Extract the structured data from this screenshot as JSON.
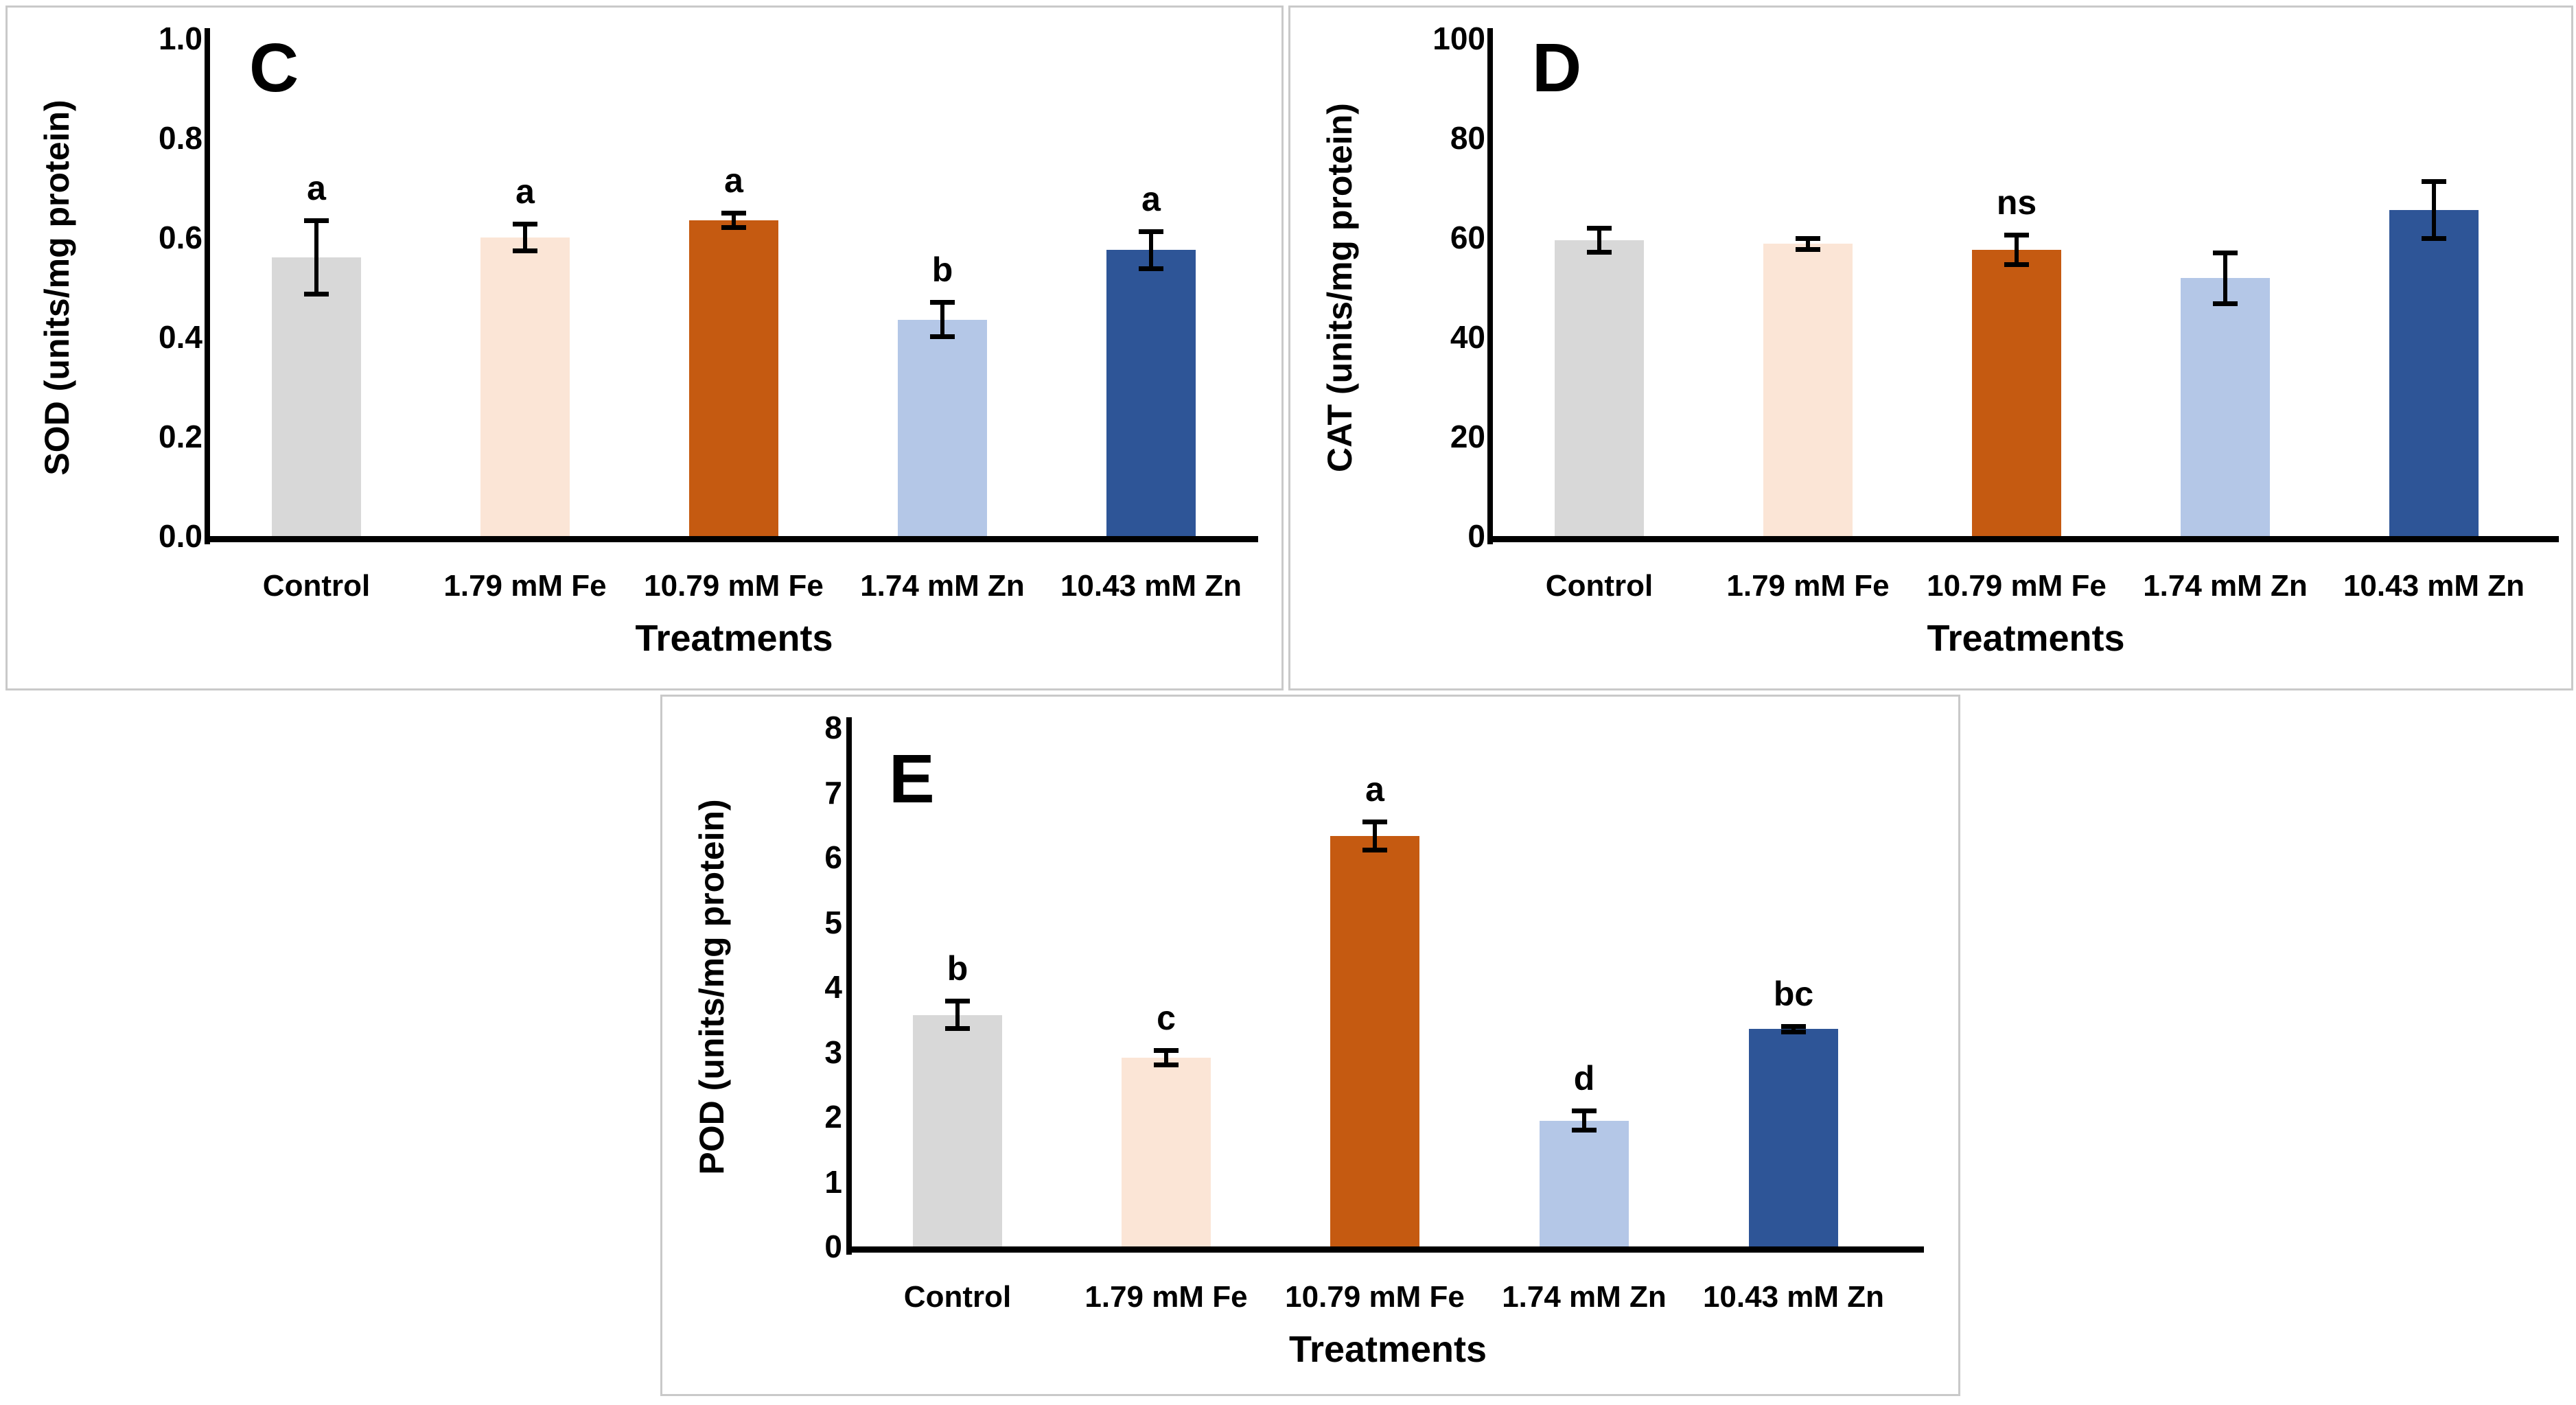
{
  "figure": {
    "background": "#ffffff",
    "panel_border_color": "#c9c9c9",
    "axis_color": "#000000",
    "error_bar_color": "#000000",
    "text_color": "#000000"
  },
  "treatments": [
    "Control",
    "1.79 mM Fe",
    "10.79 mM Fe",
    "1.74 mM Zn",
    "10.43 mM Zn"
  ],
  "bar_colors": [
    "#d8d8d8",
    "#fbe5d6",
    "#c55a11",
    "#b4c7e7",
    "#2e5597"
  ],
  "chart_data": [
    {
      "type": "bar",
      "panel_letter": "C",
      "title": "",
      "xlabel": "Treatments",
      "ylabel": "SOD (units/mg protein)",
      "categories": [
        "Control",
        "1.79 mM Fe",
        "10.79 mM Fe",
        "1.74 mM Zn",
        "10.43 mM Zn"
      ],
      "values": [
        0.56,
        0.6,
        0.635,
        0.435,
        0.575
      ],
      "error_bars": [
        0.075,
        0.027,
        0.015,
        0.035,
        0.038
      ],
      "sig_letters": [
        "a",
        "a",
        "a",
        "b",
        "a"
      ],
      "bar_colors": [
        "#d8d8d8",
        "#fbe5d6",
        "#c55a11",
        "#b4c7e7",
        "#2e5597"
      ],
      "ylim": [
        0,
        1.0
      ],
      "yticks": [
        "0.0",
        "0.2",
        "0.4",
        "0.6",
        "0.8",
        "1.0"
      ],
      "grid": false,
      "legend": "none"
    },
    {
      "type": "bar",
      "panel_letter": "D",
      "title": "",
      "xlabel": "Treatments",
      "ylabel": "CAT (units/mg protein)",
      "categories": [
        "Control",
        "1.79 mM Fe",
        "10.79 mM Fe",
        "1.74 mM Zn",
        "10.43 mM Zn"
      ],
      "values": [
        59.5,
        58.7,
        57.5,
        51.8,
        65.5
      ],
      "error_bars": [
        2.5,
        1.2,
        3.0,
        5.2,
        5.8
      ],
      "sig_letters": [
        "",
        "",
        "ns",
        "",
        ""
      ],
      "bar_colors": [
        "#d8d8d8",
        "#fbe5d6",
        "#c55a11",
        "#b4c7e7",
        "#2e5597"
      ],
      "ylim": [
        0,
        100
      ],
      "yticks": [
        "0",
        "20",
        "40",
        "60",
        "80",
        "100"
      ],
      "grid": false,
      "legend": "none"
    },
    {
      "type": "bar",
      "panel_letter": "E",
      "title": "",
      "xlabel": "Treatments",
      "ylabel": "POD (units/mg protein)",
      "categories": [
        "Control",
        "1.79 mM Fe",
        "10.79 mM Fe",
        "1.74 mM Zn",
        "10.43 mM Zn"
      ],
      "values": [
        3.57,
        2.91,
        6.33,
        1.94,
        3.35
      ],
      "error_bars": [
        0.22,
        0.12,
        0.22,
        0.15,
        0.05
      ],
      "sig_letters": [
        "b",
        "c",
        "a",
        "d",
        "bc"
      ],
      "bar_colors": [
        "#d8d8d8",
        "#fbe5d6",
        "#c55a11",
        "#b4c7e7",
        "#2e5597"
      ],
      "ylim": [
        0,
        8
      ],
      "yticks": [
        "0",
        "1",
        "2",
        "3",
        "4",
        "5",
        "6",
        "7",
        "8"
      ],
      "grid": false,
      "legend": "none"
    }
  ]
}
